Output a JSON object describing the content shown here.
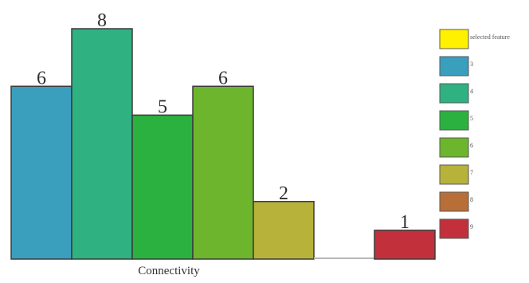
{
  "chart_data": {
    "type": "bar",
    "title": "",
    "xlabel": "Connectivity",
    "ylabel": "",
    "ylim": [
      0,
      8
    ],
    "grid": false,
    "categories": [
      "",
      "",
      "",
      "",
      "",
      "",
      ""
    ],
    "values": [
      6,
      8,
      5,
      6,
      2,
      0,
      1
    ],
    "data_labels": [
      "6",
      "8",
      "5",
      "6",
      "2",
      "",
      "1"
    ],
    "colors": [
      "#3a9fbc",
      "#2fb182",
      "#2bb13f",
      "#6cb52c",
      "#b7b23a",
      "#b86e36",
      "#c2313b"
    ],
    "legend_position": "right",
    "legend": [
      {
        "label": "selected feature",
        "color": "#fff100"
      },
      {
        "label": "3",
        "color": "#3a9fbc"
      },
      {
        "label": "4",
        "color": "#2fb182"
      },
      {
        "label": "5",
        "color": "#2bb13f"
      },
      {
        "label": "6",
        "color": "#6cb52c"
      },
      {
        "label": "7",
        "color": "#b7b23a"
      },
      {
        "label": "8",
        "color": "#b86e36"
      },
      {
        "label": "9",
        "color": "#c2313b"
      }
    ]
  }
}
